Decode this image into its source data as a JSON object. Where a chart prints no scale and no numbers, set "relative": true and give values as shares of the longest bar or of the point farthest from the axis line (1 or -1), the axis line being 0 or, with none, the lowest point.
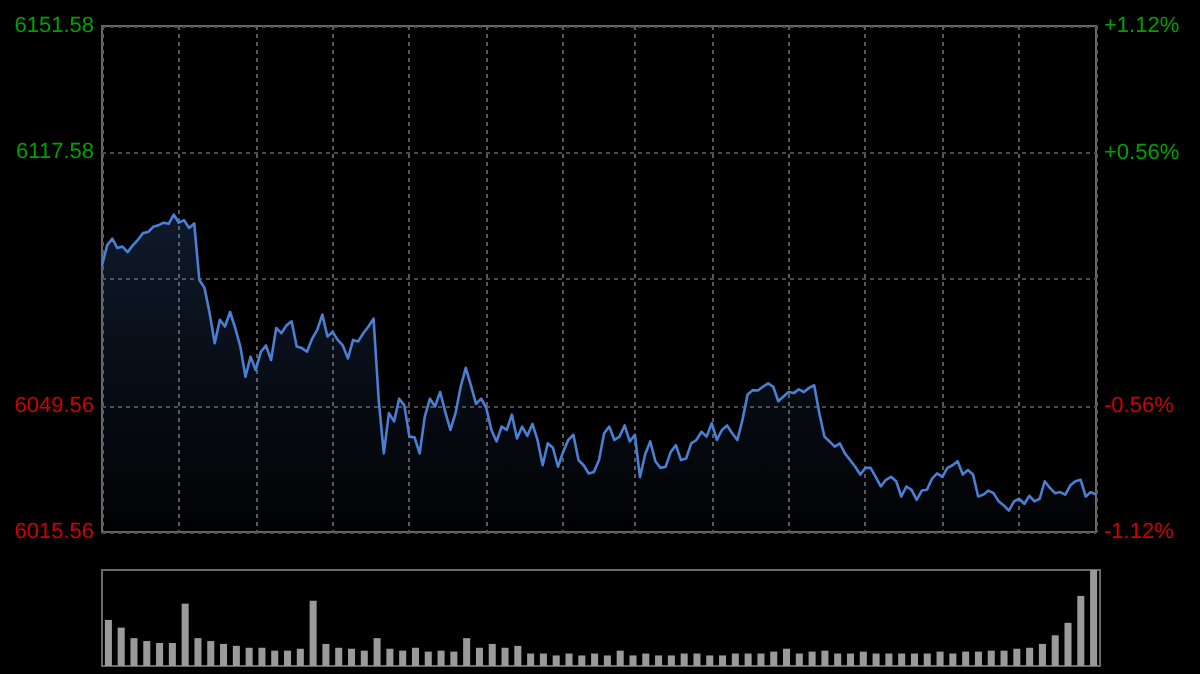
{
  "chart_data": [
    {
      "type": "area",
      "color": "#4a7fd4",
      "grid": true,
      "tick_labels": "y",
      "categories": [
        null,
        null,
        null,
        null,
        null,
        null,
        null,
        null,
        null,
        null,
        null,
        null,
        null,
        null,
        null,
        null,
        null,
        null,
        null,
        null,
        null,
        null,
        null,
        null,
        null,
        null,
        null,
        null,
        null,
        null,
        null,
        null,
        null,
        null,
        null,
        null,
        null,
        null,
        null,
        null,
        null,
        null,
        null,
        null,
        null,
        null,
        null,
        null,
        null,
        null,
        null,
        null,
        null,
        null,
        null,
        null,
        null,
        null,
        null,
        null,
        null,
        null,
        null,
        null,
        null,
        null,
        null,
        null,
        null,
        null,
        null,
        null,
        null,
        null,
        null,
        null,
        null,
        null,
        null,
        null,
        null,
        null,
        null,
        null,
        null,
        null,
        null,
        null,
        null,
        null,
        null,
        null,
        null,
        null,
        null,
        null,
        null,
        null,
        null,
        null,
        null,
        null,
        null,
        null,
        null,
        null,
        null,
        null,
        null,
        null,
        null,
        null,
        null,
        null,
        null,
        null,
        null,
        null,
        null,
        null,
        null,
        null,
        null,
        null,
        null,
        null,
        null,
        null,
        null,
        null,
        null,
        null,
        null,
        null,
        null,
        null,
        null,
        null,
        null,
        null,
        null,
        null,
        null,
        null,
        null,
        null,
        null,
        null,
        null,
        null,
        null,
        null,
        null,
        null,
        null,
        null,
        null,
        null,
        null,
        null,
        null,
        null,
        null,
        null,
        null,
        null,
        null,
        null,
        null,
        null,
        null,
        null,
        null,
        null,
        null,
        null,
        null,
        null,
        null,
        null,
        null,
        null,
        null,
        null,
        null,
        null,
        null,
        null,
        null,
        null,
        null,
        null,
        null,
        null,
        null
      ],
      "ylim": [
        6015.56,
        6151.58
      ],
      "yticks": [
        6015.56,
        6049.56,
        {
          "value": 6083.57,
          "label": null
        },
        6117.58,
        6151.58
      ],
      "y2lim": [
        -1.12,
        1.12
      ],
      "y2ticks": [
        {
          "value": -1.12,
          "label": "-1.12%"
        },
        {
          "value": -0.56,
          "label": "-0.56%"
        },
        {
          "value": 0,
          "label": null
        },
        {
          "value": 0.56,
          "label": "+0.56%"
        },
        {
          "value": 1.12,
          "label": "+1.12%"
        }
      ],
      "values": [
        6087.2,
        6092.6,
        6094.4,
        6091.9,
        6092.3,
        6090.8,
        6092.6,
        6094.1,
        6095.9,
        6096.2,
        6097.6,
        6098.0,
        6098.7,
        6098.4,
        6100.9,
        6098.7,
        6099.4,
        6097.3,
        6098.5,
        6083.3,
        6081.2,
        6074.4,
        6066.3,
        6072.6,
        6070.8,
        6074.7,
        6070.4,
        6065.4,
        6057.3,
        6062.7,
        6059.1,
        6064.0,
        6065.7,
        6061.8,
        6070.4,
        6069.0,
        6071.1,
        6072.2,
        6065.4,
        6065.0,
        6064.0,
        6067.5,
        6069.9,
        6074.0,
        6068.1,
        6069.3,
        6067.2,
        6065.7,
        6062.2,
        6067.2,
        6066.8,
        6069.0,
        6070.8,
        6072.9,
        6051.1,
        6036.7,
        6047.5,
        6045.3,
        6051.4,
        6049.6,
        6041.2,
        6041.0,
        6036.7,
        6046.6,
        6051.4,
        6049.3,
        6053.2,
        6047.8,
        6043.0,
        6047.5,
        6054.6,
        6059.7,
        6055.0,
        6050.0,
        6051.4,
        6048.9,
        6043.0,
        6039.9,
        6043.9,
        6043.0,
        6047.1,
        6040.7,
        6043.9,
        6041.4,
        6044.6,
        6040.3,
        6033.5,
        6039.4,
        6038.2,
        6033.1,
        6037.1,
        6040.3,
        6041.7,
        6034.9,
        6033.5,
        6031.3,
        6031.7,
        6034.9,
        6042.1,
        6043.9,
        6040.3,
        6041.2,
        6044.2,
        6039.9,
        6041.7,
        6030.3,
        6036.4,
        6039.9,
        6034.6,
        6032.8,
        6033.1,
        6037.1,
        6038.9,
        6034.9,
        6035.3,
        6039.4,
        6040.3,
        6042.5,
        6041.2,
        6044.8,
        6040.3,
        6043.0,
        6044.2,
        6042.1,
        6040.3,
        6045.7,
        6052.5,
        6053.7,
        6053.6,
        6054.6,
        6055.5,
        6054.6,
        6050.7,
        6052.0,
        6053.2,
        6052.9,
        6053.9,
        6053.2,
        6054.3,
        6055.0,
        6047.5,
        6041.2,
        6039.9,
        6038.5,
        6039.4,
        6036.7,
        6034.9,
        6033.1,
        6031.0,
        6032.8,
        6032.8,
        6030.4,
        6027.8,
        6029.6,
        6030.4,
        6029.2,
        6025.1,
        6027.8,
        6026.9,
        6024.2,
        6026.7,
        6026.9,
        6029.9,
        6031.3,
        6030.4,
        6032.8,
        6033.5,
        6034.6,
        6031.0,
        6032.2,
        6031.0,
        6025.1,
        6025.6,
        6026.7,
        6026.0,
        6023.8,
        6022.7,
        6021.3,
        6023.8,
        6024.5,
        6023.1,
        6025.3,
        6023.8,
        6024.5,
        6029.2,
        6027.4,
        6026.0,
        6026.3,
        6025.6,
        6028.1,
        6029.2,
        6029.6,
        6025.1,
        6026.3,
        6025.6
      ]
    },
    {
      "type": "bar",
      "relative": true,
      "color": "#9a9a9a",
      "tick_labels": false,
      "categories": [
        null,
        null,
        null,
        null,
        null,
        null,
        null,
        null,
        null,
        null,
        null,
        null,
        null,
        null,
        null,
        null,
        null,
        null,
        null,
        null,
        null,
        null,
        null,
        null,
        null,
        null,
        null,
        null,
        null,
        null,
        null,
        null,
        null,
        null,
        null,
        null,
        null,
        null,
        null,
        null,
        null,
        null,
        null,
        null,
        null,
        null,
        null,
        null,
        null,
        null,
        null,
        null,
        null,
        null,
        null,
        null,
        null,
        null,
        null,
        null,
        null,
        null,
        null,
        null,
        null,
        null,
        null,
        null,
        null,
        null,
        null,
        null,
        null,
        null,
        null,
        null,
        null,
        null
      ],
      "values": [
        0.48,
        0.4,
        0.29,
        0.26,
        0.24,
        0.24,
        0.65,
        0.29,
        0.26,
        0.23,
        0.21,
        0.19,
        0.19,
        0.16,
        0.16,
        0.18,
        0.68,
        0.23,
        0.19,
        0.18,
        0.16,
        0.29,
        0.18,
        0.16,
        0.19,
        0.15,
        0.16,
        0.15,
        0.29,
        0.19,
        0.23,
        0.19,
        0.21,
        0.13,
        0.13,
        0.11,
        0.13,
        0.11,
        0.13,
        0.11,
        0.16,
        0.11,
        0.13,
        0.11,
        0.11,
        0.13,
        0.13,
        0.11,
        0.11,
        0.13,
        0.13,
        0.13,
        0.15,
        0.18,
        0.13,
        0.15,
        0.16,
        0.13,
        0.13,
        0.15,
        0.13,
        0.13,
        0.13,
        0.13,
        0.13,
        0.15,
        0.13,
        0.15,
        0.15,
        0.16,
        0.16,
        0.18,
        0.19,
        0.23,
        0.32,
        0.45,
        0.73,
        1
      ]
    }
  ]
}
